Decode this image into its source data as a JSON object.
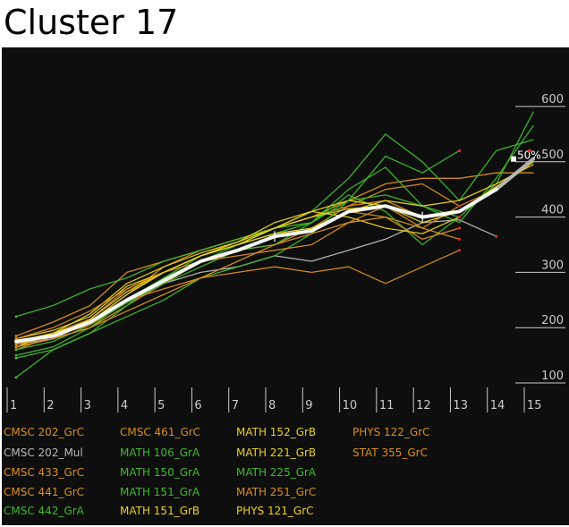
{
  "title": "Cluster 17",
  "chart_data": {
    "type": "line",
    "title": "Cluster 17",
    "x": [
      1,
      2,
      3,
      4,
      5,
      6,
      7,
      8,
      9,
      10,
      11,
      12,
      13,
      14,
      15
    ],
    "x_tick_labels": [
      "1",
      "2",
      "3",
      "4",
      "5",
      "6",
      "7",
      "8",
      "9",
      "10",
      "11",
      "12",
      "13",
      "14",
      "15"
    ],
    "y_tick_labels": [
      "100",
      "200",
      "300",
      "400",
      "500",
      "600"
    ],
    "y_ticks": [
      100,
      200,
      300,
      400,
      500,
      600
    ],
    "ylim": [
      100,
      620
    ],
    "xlim": [
      0.7,
      15.6
    ],
    "annotation": "50%",
    "colors": {
      "orange": "#d98f1f",
      "yellow": "#e8d21b",
      "green": "#3fb82e",
      "gray": "#b8b8b8",
      "white": "#ffffff",
      "background": "#0e0e0e"
    },
    "series": [
      {
        "name": "CMSC 202_GrC",
        "color": "#d98f1f",
        "values": [
          175,
          190,
          215,
          270,
          300,
          330,
          350,
          370,
          380,
          420,
          430,
          400,
          410,
          null,
          null
        ]
      },
      {
        "name": "CMSC 202_Mul",
        "color": "#b8b8b8",
        "values": [
          170,
          180,
          210,
          250,
          280,
          300,
          310,
          330,
          320,
          340,
          360,
          390,
          395,
          365,
          null
        ]
      },
      {
        "name": "CMSC 433_GrC",
        "color": "#d98f1f",
        "values": [
          165,
          180,
          200,
          240,
          280,
          320,
          340,
          350,
          380,
          410,
          400,
          380,
          420,
          450,
          500
        ]
      },
      {
        "name": "CMSC 441_GrC",
        "color": "#d98f1f",
        "values": [
          160,
          185,
          210,
          260,
          310,
          340,
          360,
          380,
          400,
          420,
          450,
          460,
          420,
          null,
          null
        ]
      },
      {
        "name": "CMSC 442_GrA",
        "color": "#3fb82e",
        "values": [
          145,
          160,
          190,
          240,
          290,
          320,
          350,
          380,
          390,
          430,
          440,
          420,
          390,
          470,
          565
        ]
      },
      {
        "name": "CMSC 461_GrC",
        "color": "#d98f1f",
        "values": [
          185,
          210,
          240,
          300,
          320,
          340,
          360,
          380,
          400,
          430,
          460,
          470,
          470,
          480,
          480
        ]
      },
      {
        "name": "MATH 106_GrA",
        "color": "#3fb82e",
        "values": [
          220,
          240,
          270,
          290,
          320,
          340,
          360,
          380,
          410,
          470,
          550,
          500,
          430,
          520,
          540
        ]
      },
      {
        "name": "MATH 150_GrA",
        "color": "#3fb82e",
        "values": [
          160,
          175,
          205,
          245,
          280,
          310,
          340,
          350,
          390,
          440,
          410,
          350,
          400,
          460,
          590
        ]
      },
      {
        "name": "MATH 151_GrA",
        "color": "#3fb82e",
        "values": [
          150,
          165,
          200,
          250,
          290,
          330,
          350,
          370,
          390,
          450,
          490,
          420,
          400,
          null,
          null
        ]
      },
      {
        "name": "MATH 151_GrB",
        "color": "#e8d21b",
        "values": [
          170,
          185,
          215,
          265,
          300,
          330,
          350,
          380,
          400,
          415,
          420,
          390,
          410,
          455,
          500
        ]
      },
      {
        "name": "MATH 152_GrB",
        "color": "#e8d21b",
        "values": [
          180,
          195,
          220,
          275,
          300,
          330,
          355,
          390,
          410,
          400,
          380,
          370,
          400,
          null,
          null
        ]
      },
      {
        "name": "MATH 221_GrB",
        "color": "#e8d21b",
        "values": [
          165,
          190,
          225,
          280,
          310,
          335,
          355,
          380,
          410,
          430,
          420,
          400,
          410,
          null,
          null
        ]
      },
      {
        "name": "MATH 225_GrA",
        "color": "#3fb82e",
        "values": [
          110,
          160,
          190,
          220,
          250,
          290,
          310,
          330,
          370,
          430,
          510,
          480,
          520,
          null,
          null
        ]
      },
      {
        "name": "MATH 251_GrC",
        "color": "#d98f1f",
        "values": [
          180,
          200,
          230,
          270,
          300,
          320,
          330,
          340,
          350,
          390,
          420,
          380,
          360,
          null,
          null
        ]
      },
      {
        "name": "PHYS 121_GrC",
        "color": "#e8d21b",
        "values": [
          175,
          190,
          210,
          260,
          300,
          330,
          350,
          370,
          380,
          410,
          430,
          420,
          430,
          460,
          495
        ]
      },
      {
        "name": "PHYS 122_GrC",
        "color": "#d98f1f",
        "values": [
          170,
          185,
          205,
          250,
          270,
          290,
          300,
          310,
          300,
          310,
          280,
          310,
          340,
          null,
          null
        ]
      },
      {
        "name": "STAT 355_GrC",
        "color": "#d98f1f",
        "values": [
          165,
          180,
          200,
          230,
          260,
          290,
          320,
          350,
          370,
          390,
          400,
          360,
          380,
          null,
          null
        ]
      }
    ],
    "median": {
      "name": "median",
      "color": "#ffffff",
      "values": [
        175,
        185,
        210,
        250,
        285,
        320,
        340,
        365,
        375,
        410,
        420,
        400,
        410,
        450,
        505
      ]
    },
    "median_tail": {
      "color": "#b8b8b8",
      "values": [
        null,
        null,
        null,
        null,
        null,
        null,
        null,
        null,
        null,
        null,
        null,
        null,
        null,
        450,
        505
      ]
    }
  }
}
